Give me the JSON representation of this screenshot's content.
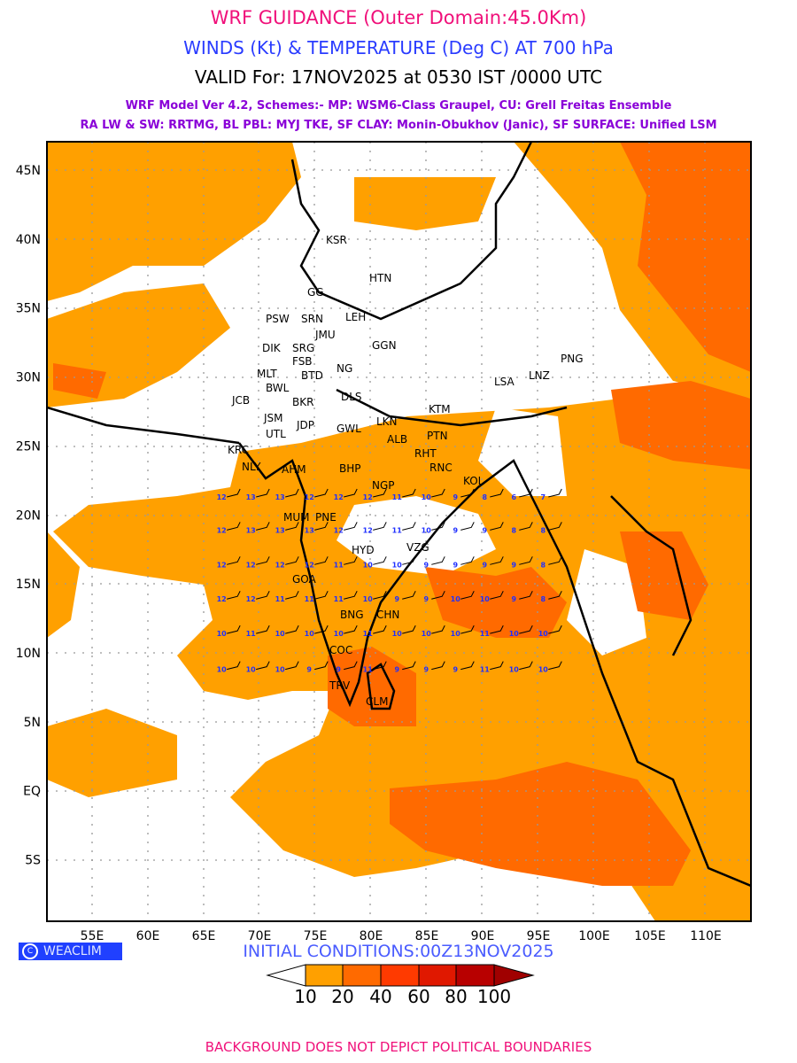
{
  "header": {
    "title": "WRF GUIDANCE (Outer Domain:45.0Km)",
    "subtitle": "WINDS (Kt) & TEMPERATURE (Deg C) AT 700 hPa",
    "valid": "VALID For: 17NOV2025 at 0530 IST /0000 UTC",
    "schemes_line1": "WRF Model Ver 4.2, Schemes:- MP: WSM6-Class Graupel, CU: Grell Freitas Ensemble",
    "schemes_line2": "RA LW & SW: RRTMG, BL PBL: MYJ TKE, SF CLAY: Monin-Obukhov (Janic), SF SURFACE: Unified LSM"
  },
  "axes": {
    "lat_labels": [
      "45N",
      "40N",
      "35N",
      "30N",
      "25N",
      "20N",
      "15N",
      "10N",
      "5N",
      "EQ",
      "5S"
    ],
    "lon_labels": [
      "55E",
      "60E",
      "65E",
      "70E",
      "75E",
      "80E",
      "85E",
      "90E",
      "95E",
      "100E",
      "105E",
      "110E"
    ]
  },
  "cities": [
    "KSR",
    "HTN",
    "GG",
    "PSW",
    "SRN",
    "LEH",
    "JMU",
    "DIK",
    "SRG",
    "FSB",
    "GGN",
    "MLT",
    "BTD",
    "NG",
    "BWL",
    "PNG",
    "LSA",
    "LNZ",
    "JCB",
    "BKR",
    "DLS",
    "KTM",
    "JSM",
    "JDP",
    "UTL",
    "GWL",
    "LKN",
    "ALB",
    "PTN",
    "KRC",
    "RHT",
    "BHP",
    "AHM",
    "NLY",
    "RNC",
    "KOL",
    "NGP",
    "MUM",
    "PNE",
    "HYD",
    "VZG",
    "GOA",
    "BNG",
    "CHN",
    "COC",
    "TRV",
    "CLM"
  ],
  "temperature_grid": {
    "lats": [
      21.3,
      18.9,
      16.4,
      13.9,
      11.4,
      8.8
    ],
    "lon_start": 66.6,
    "lon_step": 2.62,
    "rows": [
      [
        12,
        13,
        13,
        12,
        12,
        12,
        11,
        10,
        9,
        8,
        6,
        7
      ],
      [
        12,
        13,
        13,
        13,
        12,
        12,
        11,
        10,
        9,
        9,
        8,
        8
      ],
      [
        12,
        12,
        12,
        12,
        11,
        10,
        10,
        9,
        9,
        9,
        9,
        8
      ],
      [
        12,
        12,
        11,
        11,
        11,
        10,
        9,
        9,
        10,
        10,
        9,
        8
      ],
      [
        10,
        11,
        10,
        10,
        10,
        11,
        10,
        10,
        10,
        11,
        10,
        10
      ],
      [
        10,
        10,
        10,
        9,
        9,
        11,
        9,
        9,
        9,
        11,
        10,
        10
      ]
    ]
  },
  "legend": {
    "ticks": [
      "10",
      "20",
      "40",
      "60",
      "80",
      "100"
    ],
    "colors": [
      "#ffffff",
      "#ffa000",
      "#ff6a00",
      "#ff3a00",
      "#e01800",
      "#b80000",
      "#a00000"
    ]
  },
  "credit": "WEACLIM",
  "initial_conditions": "INITIAL CONDITIONS:00Z13NOV2025",
  "footer": "BACKGROUND DOES NOT DEPICT POLITICAL BOUNDARIES"
}
